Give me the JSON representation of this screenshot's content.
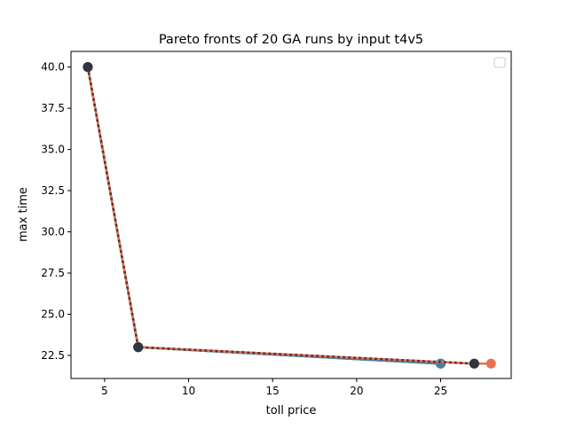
{
  "chart_data": {
    "type": "line",
    "title": "Pareto fronts of 20 GA runs by input t4v5",
    "xlabel": "toll price",
    "ylabel": "max time",
    "xlim": [
      3.0,
      29.2
    ],
    "ylim": [
      21.1,
      40.95
    ],
    "xticks": [
      5,
      10,
      15,
      20,
      25
    ],
    "yticks": [
      22.5,
      25.0,
      27.5,
      30.0,
      32.5,
      35.0,
      37.5,
      40.0
    ],
    "xtick_labels": [
      "5",
      "10",
      "15",
      "20",
      "25"
    ],
    "ytick_labels": [
      "22.5",
      "25.0",
      "27.5",
      "30.0",
      "32.5",
      "35.0",
      "37.5",
      "40.0"
    ],
    "grid": false,
    "legend": {
      "position": "top-right",
      "entries": []
    },
    "series": [
      {
        "color": "#2ca02c",
        "dash": "none",
        "x": [
          4,
          7,
          25
        ],
        "y": [
          40,
          23,
          22
        ]
      },
      {
        "color": "#17becf",
        "dash": "4,2",
        "x": [
          4,
          7,
          25
        ],
        "y": [
          40,
          23,
          22
        ]
      },
      {
        "color": "#4c7ea0",
        "dash": "none",
        "x": [
          4,
          7,
          25
        ],
        "y": [
          40,
          23,
          22
        ]
      },
      {
        "color": "#e8704f",
        "dash": "none",
        "x": [
          4,
          7,
          27,
          28
        ],
        "y": [
          40,
          23,
          22,
          22
        ]
      },
      {
        "color": "#c0392b",
        "dash": "3,3",
        "x": [
          4,
          7,
          27
        ],
        "y": [
          40,
          23,
          22
        ]
      },
      {
        "color": "#2f3542",
        "dash": "2,4",
        "x": [
          4,
          7,
          27
        ],
        "y": [
          40,
          23,
          22
        ]
      }
    ]
  }
}
